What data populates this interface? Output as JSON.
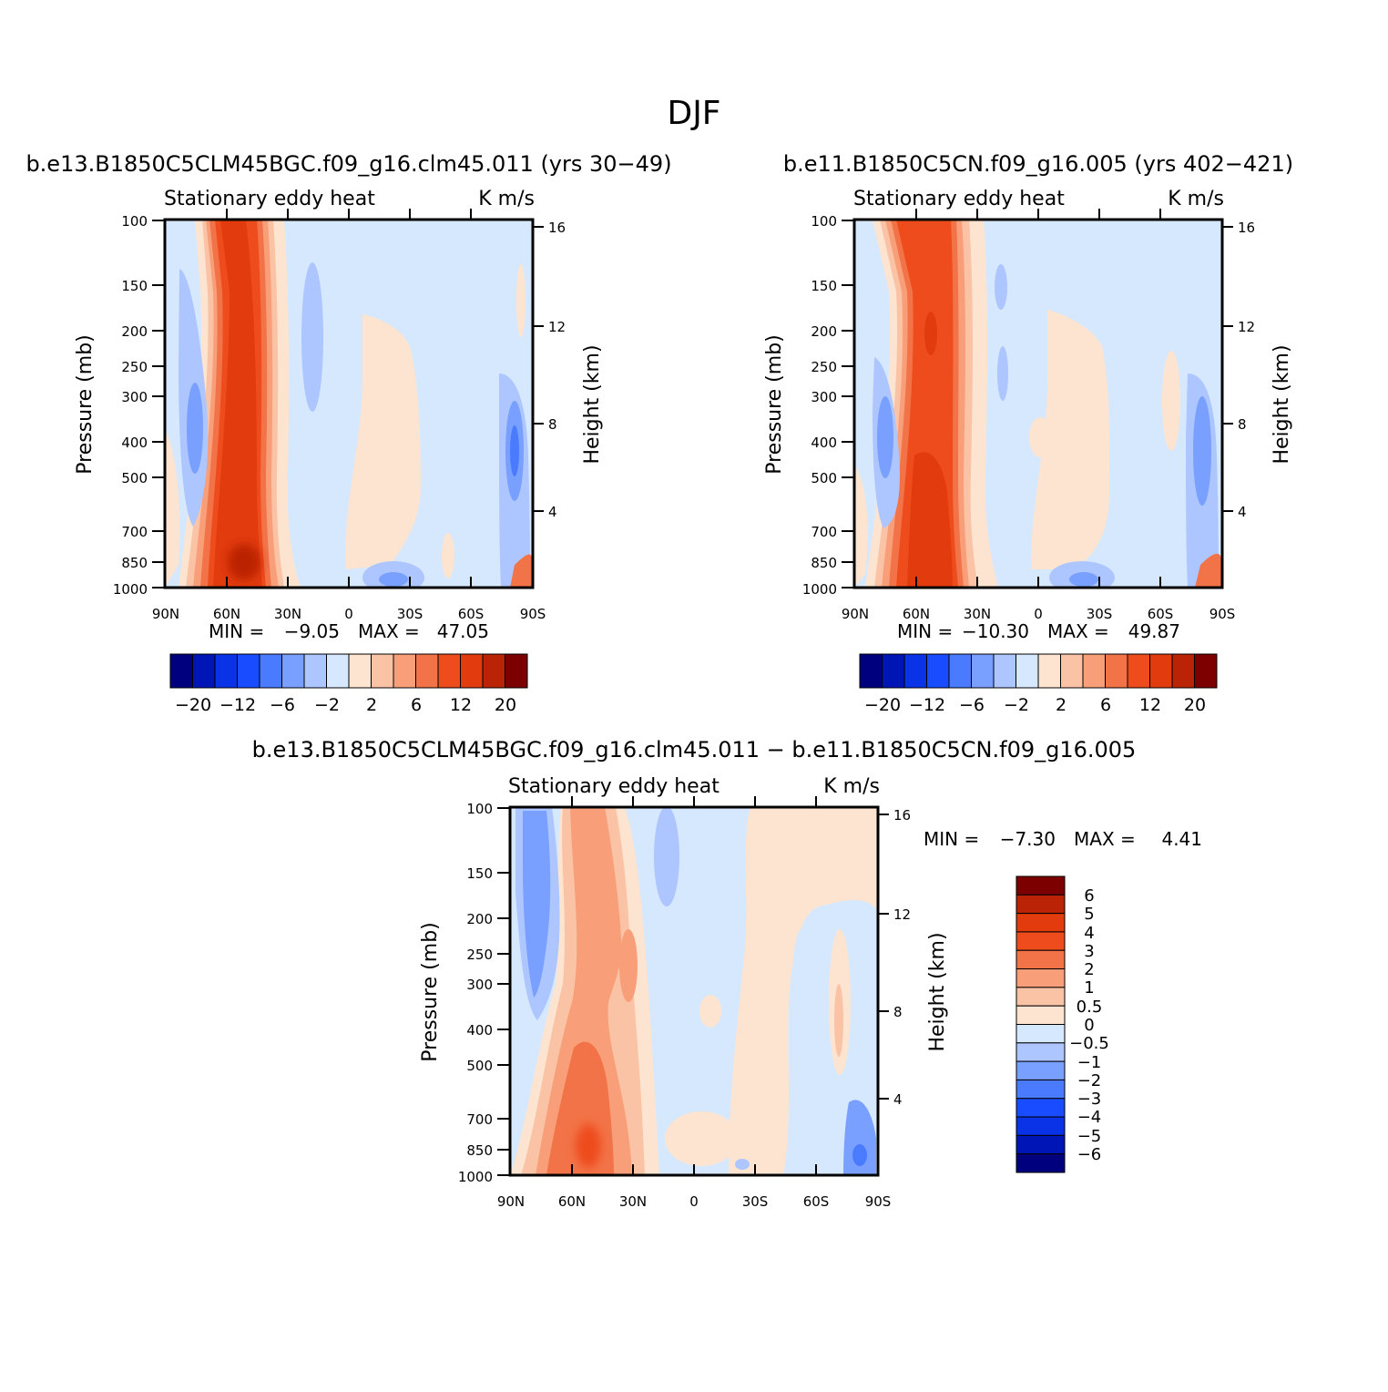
{
  "figure_title": "DJF",
  "colors": {
    "main_scale": [
      "#00007f",
      "#0015b6",
      "#0a32e6",
      "#1a4cff",
      "#4a7bff",
      "#7aa0ff",
      "#adc6ff",
      "#d6e8fd",
      "#fde4d0",
      "#fbc3a5",
      "#f89f7a",
      "#f27348",
      "#ee4c1c",
      "#e23b0e",
      "#bb2306",
      "#7d0000"
    ],
    "diff_scale": [
      "#00007f",
      "#0015b6",
      "#0a32e6",
      "#1a4cff",
      "#4a7bff",
      "#7aa0ff",
      "#adc6ff",
      "#d6e8fd",
      "#fde4d0",
      "#fbc3a5",
      "#f89f7a",
      "#f27348",
      "#ee4c1c",
      "#e23b0e",
      "#bb2306",
      "#7d0000"
    ]
  },
  "chart_data": [
    {
      "type": "heatmap",
      "case": "b.e13.B1850C5CLM45BGC.f09_g16.clm45.011 (yrs 30-49)",
      "variable": "Stationary eddy heat",
      "units": "K m/s",
      "xlabel": "",
      "ylabel": "Pressure (mb)",
      "y2label": "Height (km)",
      "x_ticks": [
        "90N",
        "60N",
        "30N",
        "0",
        "30S",
        "60S",
        "90S"
      ],
      "y_ticks": [
        100,
        150,
        200,
        250,
        300,
        400,
        500,
        700,
        850,
        1000
      ],
      "y2_ticks": [
        16,
        12,
        8,
        4
      ],
      "min_label": "MIN =",
      "min_value": "-9.05",
      "max_label": "MAX =",
      "max_value": "47.05",
      "colorbar_labels": [
        "-20",
        "-12",
        "-6",
        "-2",
        "2",
        "6",
        "12",
        "20"
      ],
      "features": [
        {
          "lat": 52,
          "lev_top": 100,
          "lev_bot": 1000,
          "peak": 47.05,
          "sign": "positive"
        },
        {
          "lat": 77,
          "lev_top": 160,
          "lev_bot": 700,
          "peak": -5,
          "sign": "negative"
        },
        {
          "lat": -85,
          "lev_top": 300,
          "lev_bot": 1000,
          "peak": -9.05,
          "sign": "negative"
        }
      ]
    },
    {
      "type": "heatmap",
      "case": "b.e11.B1850C5CN.f09_g16.005 (yrs 402-421)",
      "variable": "Stationary eddy heat",
      "units": "K m/s",
      "xlabel": "",
      "ylabel": "Pressure (mb)",
      "y2label": "Height (km)",
      "x_ticks": [
        "90N",
        "60N",
        "30N",
        "0",
        "30S",
        "60S",
        "90S"
      ],
      "y_ticks": [
        100,
        150,
        200,
        250,
        300,
        400,
        500,
        700,
        850,
        1000
      ],
      "y2_ticks": [
        16,
        12,
        8,
        4
      ],
      "min_label": "MIN =",
      "min_value": "-10.30",
      "max_label": "MAX =",
      "max_value": "49.87",
      "colorbar_labels": [
        "-20",
        "-12",
        "-6",
        "-2",
        "2",
        "6",
        "12",
        "20"
      ],
      "features": [
        {
          "lat": 52,
          "lev_top": 100,
          "lev_bot": 1000,
          "peak": 49.87,
          "sign": "positive"
        },
        {
          "lat": 77,
          "lev_top": 250,
          "lev_bot": 700,
          "peak": -5,
          "sign": "negative"
        },
        {
          "lat": -85,
          "lev_top": 300,
          "lev_bot": 1000,
          "peak": -10.3,
          "sign": "negative"
        }
      ]
    },
    {
      "type": "heatmap",
      "case": "b.e13.B1850C5CLM45BGC.f09_g16.clm45.011 - b.e11.B1850C5CN.f09_g16.005",
      "variable": "Stationary eddy heat",
      "units": "K m/s",
      "xlabel": "",
      "ylabel": "Pressure (mb)",
      "y2label": "Height (km)",
      "x_ticks": [
        "90N",
        "60N",
        "30N",
        "0",
        "30S",
        "60S",
        "90S"
      ],
      "y_ticks": [
        100,
        150,
        200,
        250,
        300,
        400,
        500,
        700,
        850,
        1000
      ],
      "y2_ticks": [
        16,
        12,
        8,
        4
      ],
      "min_label": "MIN =",
      "min_value": "-7.30",
      "max_label": "MAX =",
      "max_value": "4.41",
      "colorbar_labels": [
        "6",
        "5",
        "4",
        "3",
        "2",
        "1",
        "0.5",
        "0",
        "-0.5",
        "-1",
        "-2",
        "-3",
        "-4",
        "-5",
        "-6"
      ],
      "features": [
        {
          "lat": 48,
          "lev_top": 100,
          "lev_bot": 1000,
          "peak": 4.41,
          "sign": "positive"
        },
        {
          "lat": 75,
          "lev_top": 100,
          "lev_bot": 500,
          "peak": -2,
          "sign": "negative"
        },
        {
          "lat": -85,
          "lev_top": 700,
          "lev_bot": 1000,
          "peak": -7.3,
          "sign": "negative"
        }
      ]
    }
  ]
}
